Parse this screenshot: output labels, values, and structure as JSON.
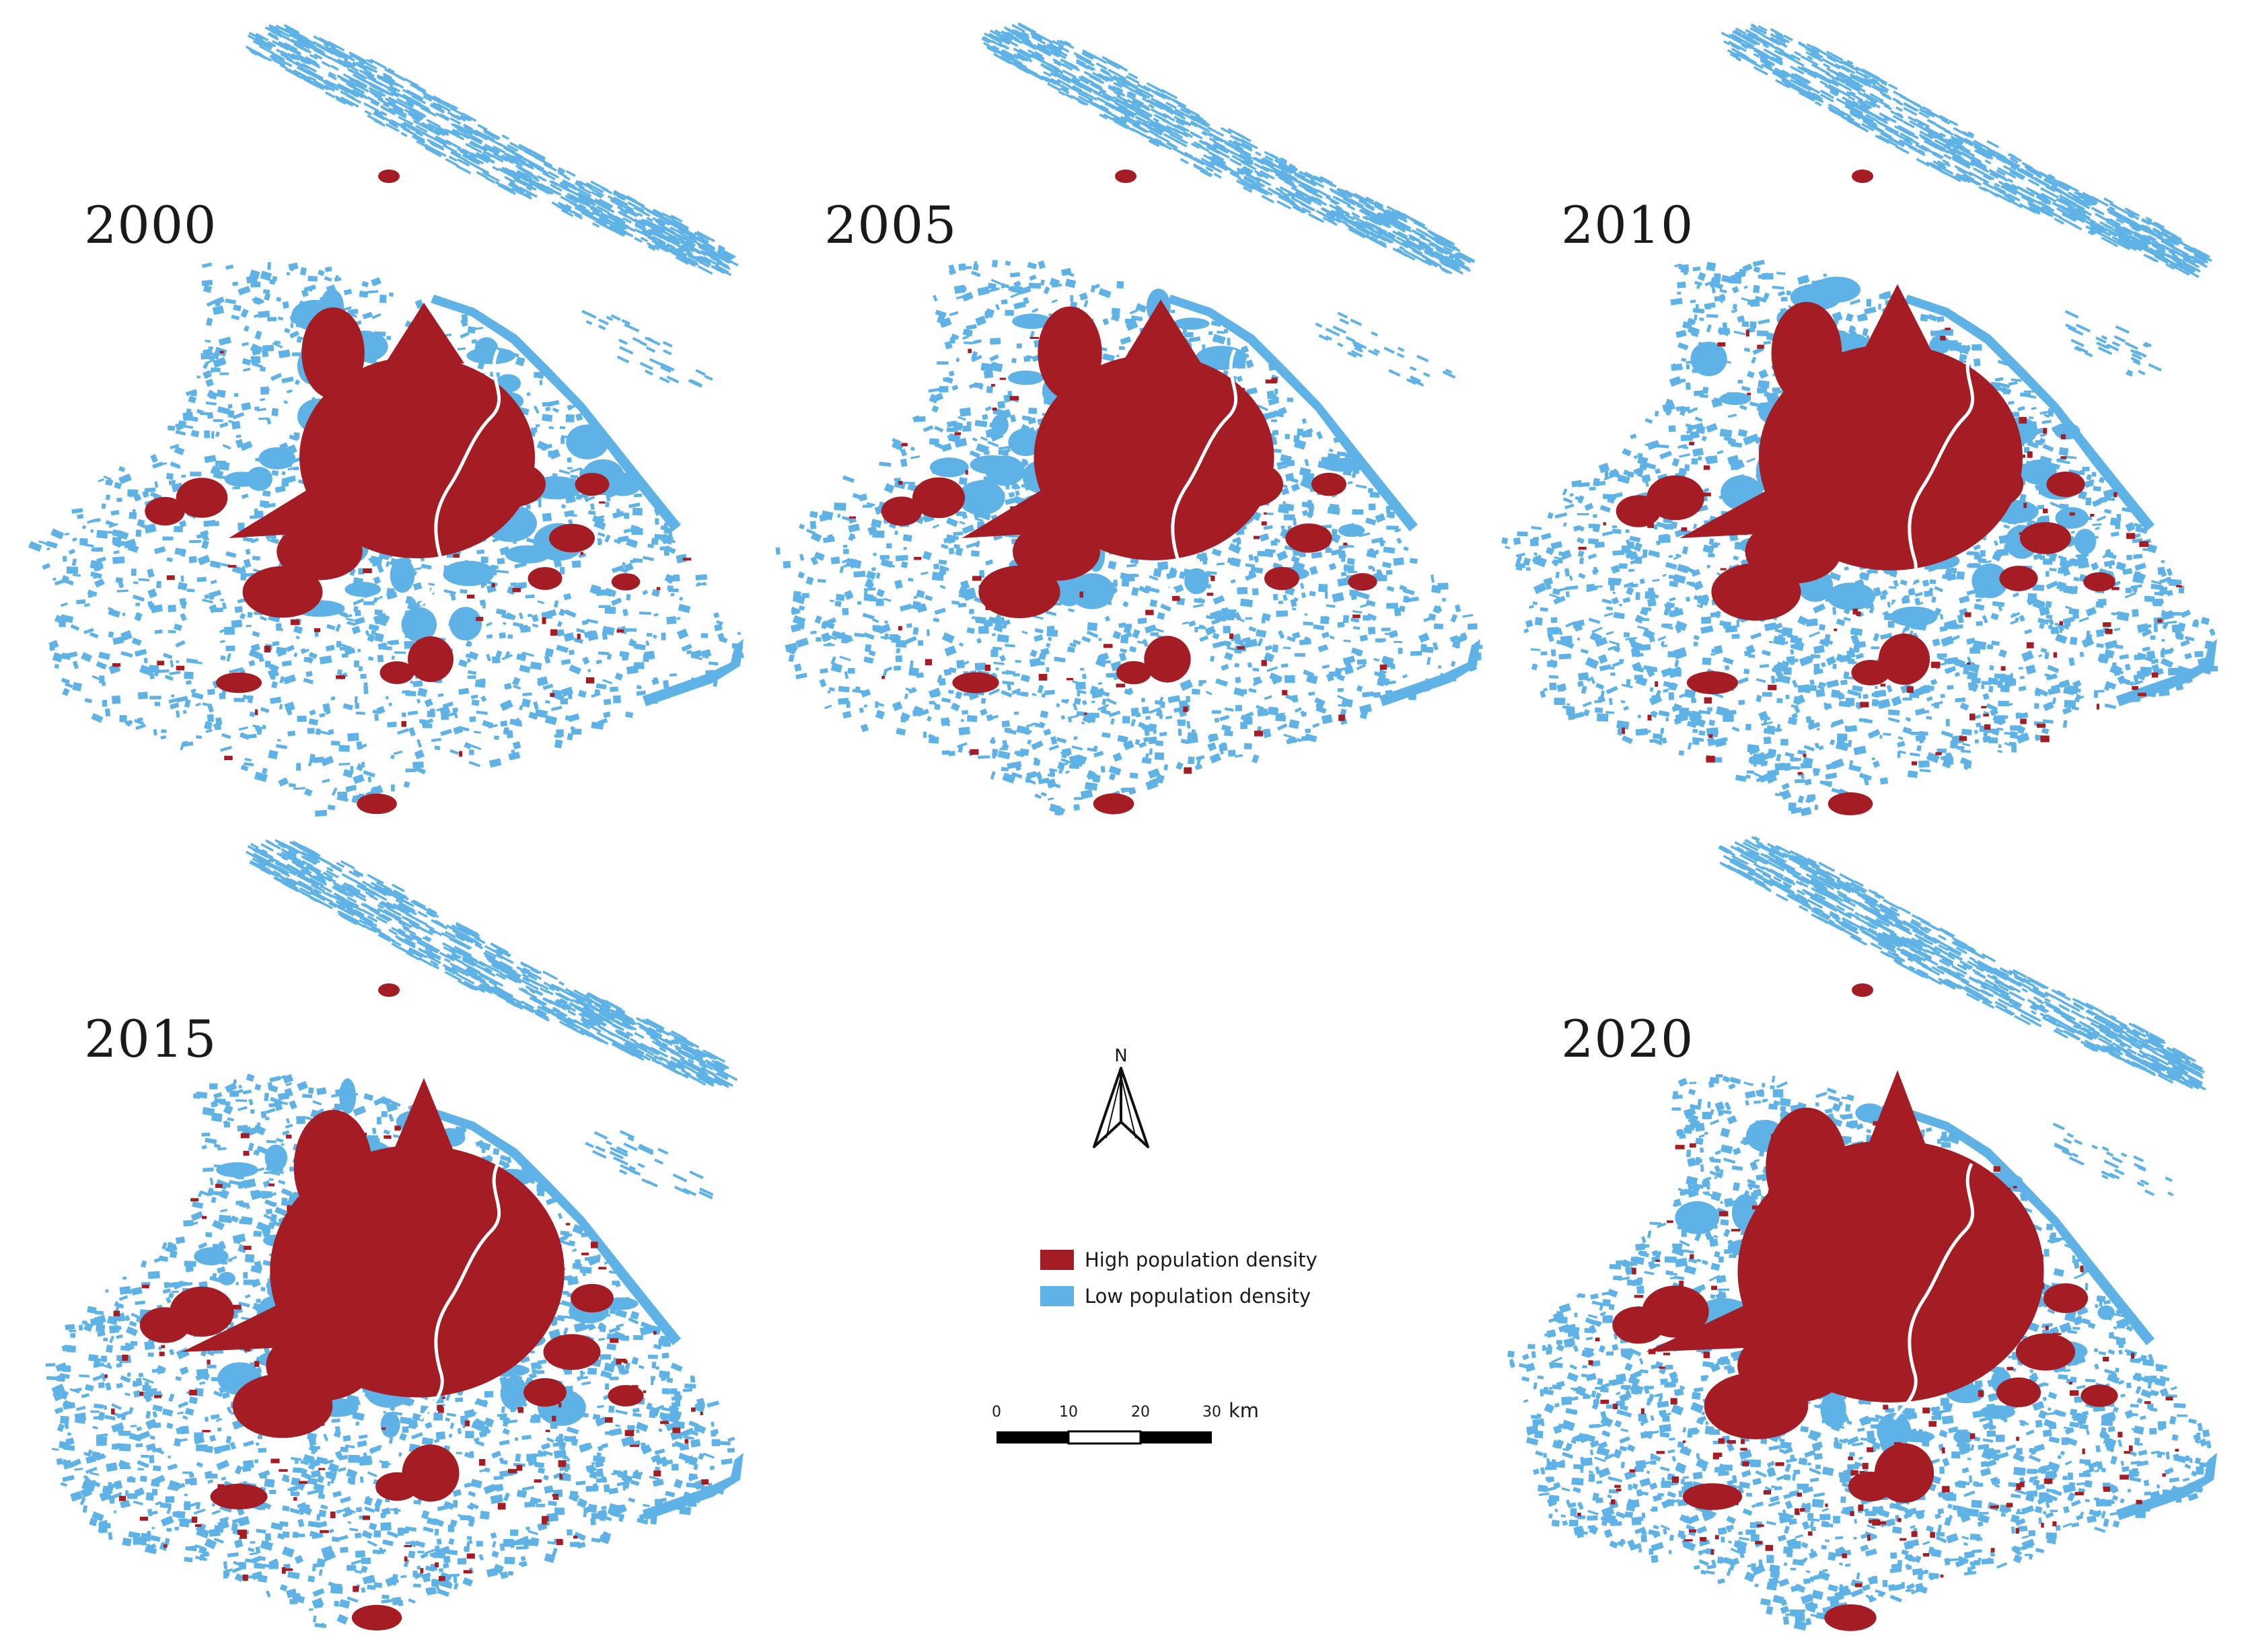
{
  "colors": {
    "high": "#a51d24",
    "low": "#5fb2e6",
    "background": "#ffffff"
  },
  "panels": [
    {
      "year": "2000",
      "high_spread": 1.0,
      "low_fill": 0.55
    },
    {
      "year": "2005",
      "high_spread": 1.02,
      "low_fill": 0.65
    },
    {
      "year": "2010",
      "high_spread": 1.12,
      "low_fill": 0.78
    },
    {
      "year": "2015",
      "high_spread": 1.25,
      "low_fill": 0.82
    },
    {
      "year": "2020",
      "high_spread": 1.3,
      "low_fill": 0.85
    }
  ],
  "north_arrow": {
    "label": "N"
  },
  "legend": {
    "items": [
      {
        "label": "High population density",
        "color": "#a51d24"
      },
      {
        "label": "Low population density",
        "color": "#5fb2e6"
      }
    ]
  },
  "scale_bar": {
    "ticks": [
      "0",
      "10",
      "20",
      "30"
    ],
    "unit": "km"
  }
}
